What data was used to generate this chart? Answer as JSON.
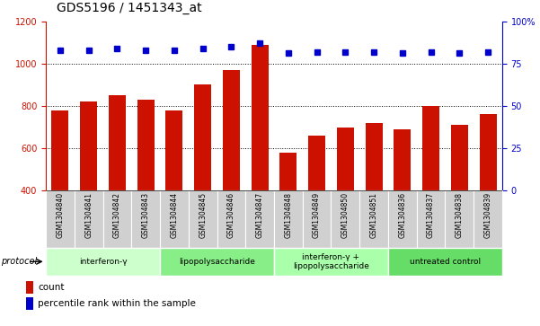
{
  "title": "GDS5196 / 1451343_at",
  "samples": [
    "GSM1304840",
    "GSM1304841",
    "GSM1304842",
    "GSM1304843",
    "GSM1304844",
    "GSM1304845",
    "GSM1304846",
    "GSM1304847",
    "GSM1304848",
    "GSM1304849",
    "GSM1304850",
    "GSM1304851",
    "GSM1304836",
    "GSM1304837",
    "GSM1304838",
    "GSM1304839"
  ],
  "counts": [
    780,
    820,
    850,
    830,
    780,
    900,
    970,
    1090,
    580,
    660,
    700,
    720,
    690,
    800,
    710,
    760
  ],
  "percentiles": [
    83,
    83,
    84,
    83,
    83,
    84,
    85,
    87,
    81,
    82,
    82,
    82,
    81,
    82,
    81,
    82
  ],
  "bar_color": "#cc1100",
  "dot_color": "#0000cc",
  "left_ylim": [
    400,
    1200
  ],
  "left_yticks": [
    400,
    600,
    800,
    1000,
    1200
  ],
  "right_ylim": [
    0,
    100
  ],
  "right_yticks": [
    0,
    25,
    50,
    75,
    100
  ],
  "right_yticklabels": [
    "0",
    "25",
    "50",
    "75",
    "100%"
  ],
  "groups": [
    {
      "label": "interferon-γ",
      "start": 0,
      "end": 4,
      "color": "#ccffcc"
    },
    {
      "label": "lipopolysaccharide",
      "start": 4,
      "end": 8,
      "color": "#88ee88"
    },
    {
      "label": "interferon-γ +\nlipopolysaccharide",
      "start": 8,
      "end": 12,
      "color": "#aaffaa"
    },
    {
      "label": "untreated control",
      "start": 12,
      "end": 16,
      "color": "#66dd66"
    }
  ],
  "protocol_label": "protocol",
  "legend_count_label": "count",
  "legend_pct_label": "percentile rank within the sample",
  "bar_color_hex": "#cc1100",
  "dot_color_hex": "#0000cc",
  "title_fontsize": 10,
  "axis_fontsize": 7,
  "label_fontsize": 5.5,
  "group_fontsize": 6.5,
  "legend_fontsize": 7.5,
  "protocol_fontsize": 7
}
